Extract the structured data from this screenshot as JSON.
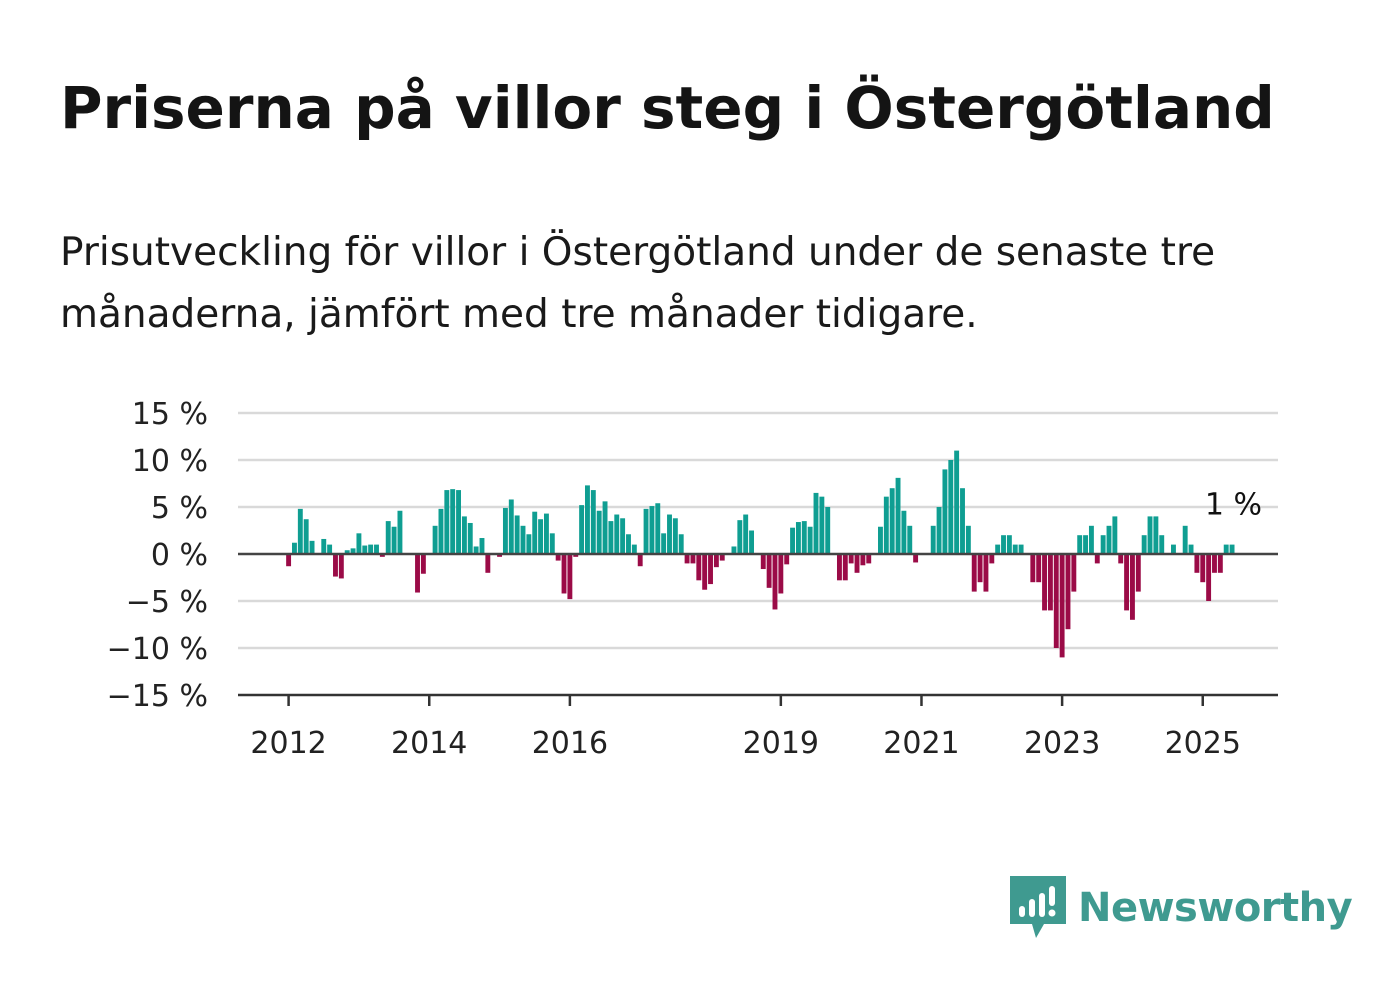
{
  "header": {
    "title": "Priserna på villor steg i Östergötland",
    "subtitle": "Prisutveckling för villor i Östergötland under de senaste tre månaderna, jämfört med tre månader tidigare."
  },
  "chart_data": {
    "type": "bar",
    "x_axis": {
      "start_year": 2012,
      "tick_labels": [
        "2012",
        "2014",
        "2016",
        "2019",
        "2021",
        "2023",
        "2025"
      ],
      "tick_years": [
        2012,
        2014,
        2016,
        2019,
        2021,
        2023,
        2025
      ]
    },
    "y_axis": {
      "ylim": [
        -15,
        15
      ],
      "ticks": [
        15,
        10,
        5,
        0,
        -5,
        -10,
        -15
      ],
      "tick_labels": [
        "15 %",
        "10 %",
        "5 %",
        "0 %",
        "−5 %",
        "−10 %",
        "−15 %"
      ]
    },
    "grid": true,
    "colors": {
      "positive": "#0f9e92",
      "negative": "#9b0b47",
      "grid": "#d9d9d9",
      "axis": "#444444"
    },
    "values": [
      -1.3,
      1.2,
      4.8,
      3.7,
      1.4,
      0.1,
      1.6,
      1.0,
      -2.4,
      -2.6,
      0.4,
      0.6,
      2.2,
      0.9,
      1.0,
      1.0,
      -0.3,
      3.5,
      2.9,
      4.6,
      0.1,
      0.1,
      -4.1,
      -2.1,
      0.1,
      3.0,
      4.8,
      6.8,
      6.9,
      6.8,
      4.0,
      3.3,
      0.8,
      1.7,
      -2.0,
      0.0,
      -0.3,
      4.9,
      5.8,
      4.1,
      3.0,
      2.1,
      4.5,
      3.7,
      4.3,
      2.2,
      -0.7,
      -4.2,
      -4.8,
      -0.3,
      5.2,
      7.3,
      6.8,
      4.6,
      5.6,
      3.5,
      4.2,
      3.8,
      2.1,
      1.0,
      -1.3,
      4.8,
      5.1,
      5.4,
      2.2,
      4.2,
      3.8,
      2.1,
      -1.0,
      -1.0,
      -2.8,
      -3.8,
      -3.2,
      -1.4,
      -0.7,
      0.0,
      0.8,
      3.6,
      4.2,
      2.5,
      0.1,
      -1.6,
      -3.6,
      -5.9,
      -4.2,
      -1.1,
      2.8,
      3.4,
      3.5,
      2.9,
      6.5,
      6.1,
      5.0,
      0.0,
      -2.8,
      -2.8,
      -1.0,
      -2.0,
      -1.2,
      -1.0,
      0.1,
      2.9,
      6.1,
      7.0,
      8.1,
      4.6,
      3.0,
      -0.9,
      0.0,
      0.0,
      3.0,
      5.0,
      9.0,
      10.0,
      11.0,
      7.0,
      3.0,
      -4.0,
      -3.0,
      -4.0,
      -1.0,
      1.0,
      2.0,
      2.0,
      1.0,
      1.0,
      0.0,
      -3.0,
      -3.0,
      -6.0,
      -6.0,
      -10.0,
      -11.0,
      -8.0,
      -4.0,
      2.0,
      2.0,
      3.0,
      -1.0,
      2.0,
      3.0,
      4.0,
      -1.0,
      -6.0,
      -7.0,
      -4.0,
      2.0,
      4.0,
      4.0,
      2.0,
      0.0,
      1.0,
      0.0,
      3.0,
      1.0,
      -2.0,
      -3.0,
      -5.0,
      -2.0,
      -2.0,
      1.0,
      1.0
    ],
    "annotation": {
      "text": "1 %",
      "value": 1,
      "series_index": 161
    }
  },
  "brand": {
    "name": "Newsworthy",
    "icon": "newsworthy-logo-icon",
    "color": "#3f9a90"
  }
}
